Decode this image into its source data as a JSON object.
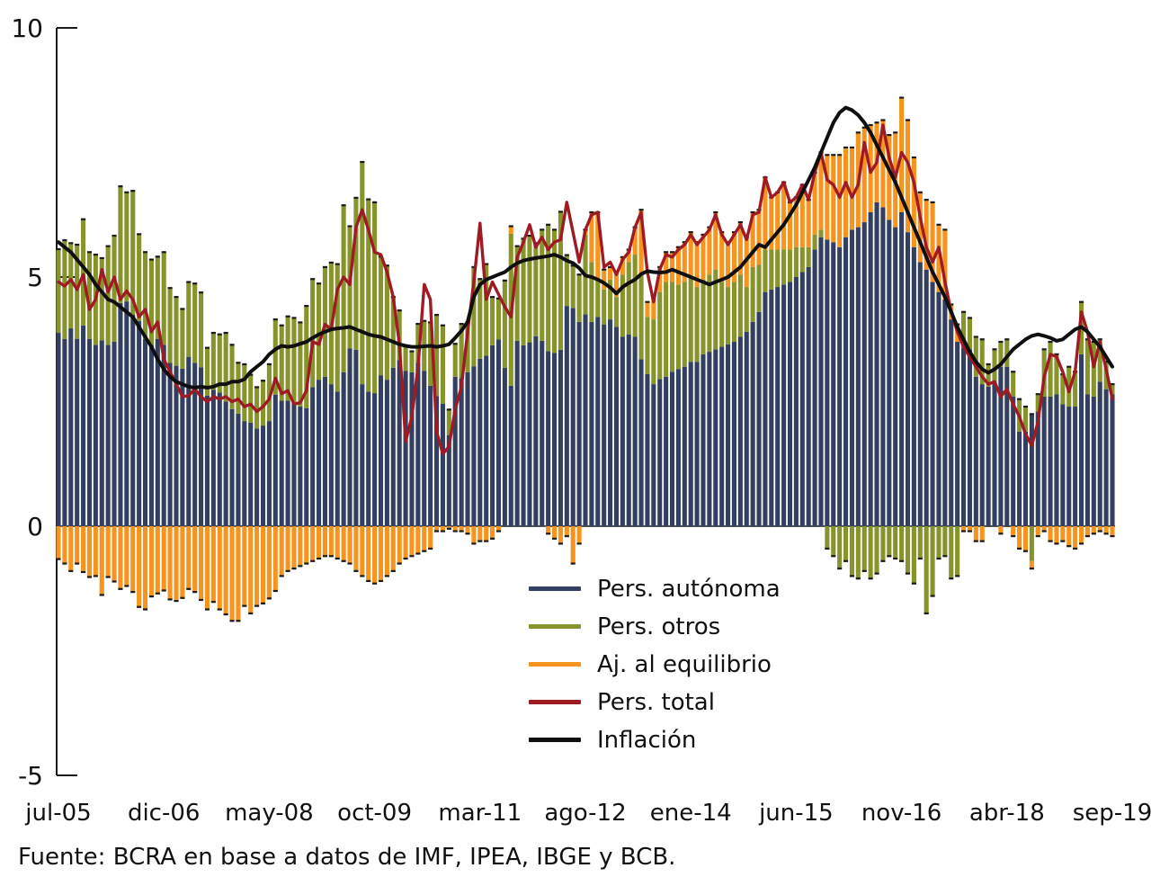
{
  "chart_data": {
    "type": "bar",
    "subtype": "stacked-bar-with-lines",
    "title": "",
    "ylim": [
      -5,
      10
    ],
    "yticks": [
      -5,
      0,
      5,
      10
    ],
    "ytick_labels": [
      "-5",
      "0",
      "5",
      "10"
    ],
    "x_unit": "month",
    "months_count": 171,
    "x_tick_indices": [
      0,
      17,
      34,
      51,
      68,
      85,
      102,
      119,
      136,
      153,
      170
    ],
    "x_tick_labels": [
      "jul-05",
      "dic-06",
      "may-08",
      "oct-09",
      "mar-11",
      "ago-12",
      "ene-14",
      "jun-15",
      "nov-16",
      "abr-18",
      "sep-19"
    ],
    "grid": false,
    "legend_position": "inside-bottom-center",
    "source_note": "Fuente: BCRA en base a datos de IMF, IPEA, IBGE y BCB.",
    "colors": {
      "autonoma": "#333f60",
      "otros": "#87942c",
      "ajuste": "#f7941e",
      "total": "#9f1b24",
      "inflacion": "#0f0f0f",
      "bar_cap": "#1b1b1b",
      "axis": "#1a1a1a"
    },
    "series": [
      {
        "name": "Pers. autónoma",
        "kind": "bar-stack",
        "color": "#333f60",
        "values": [
          3.88,
          3.76,
          3.97,
          3.76,
          4.03,
          3.76,
          3.64,
          3.73,
          3.64,
          3.7,
          4.48,
          4.51,
          4.24,
          4.12,
          3.76,
          3.64,
          3.76,
          3.64,
          3.28,
          3.22,
          3.16,
          3.4,
          3.28,
          3.19,
          2.62,
          2.74,
          2.68,
          2.5,
          2.35,
          2.26,
          2.11,
          2.08,
          1.96,
          2.02,
          2.11,
          2.64,
          2.52,
          2.52,
          2.46,
          2.4,
          2.37,
          2.79,
          2.94,
          3.0,
          2.85,
          2.7,
          3.09,
          3.57,
          3.54,
          2.85,
          2.7,
          2.67,
          3.03,
          2.94,
          3.18,
          3.33,
          3.12,
          3.09,
          3.28,
          3.12,
          2.82,
          2.61,
          2.46,
          1.83,
          3.0,
          2.97,
          3.09,
          3.21,
          3.36,
          3.42,
          3.63,
          3.75,
          3.18,
          2.82,
          3.72,
          3.63,
          3.69,
          3.81,
          3.72,
          3.51,
          3.48,
          3.54,
          4.42,
          4.38,
          4.1,
          4.25,
          4.1,
          4.2,
          4.05,
          4.15,
          4.0,
          3.8,
          3.85,
          3.8,
          3.35,
          3.05,
          2.85,
          2.95,
          3.0,
          3.1,
          3.15,
          3.2,
          3.3,
          3.3,
          3.45,
          3.5,
          3.55,
          3.6,
          3.65,
          3.7,
          3.8,
          3.9,
          4.1,
          4.3,
          4.7,
          4.75,
          4.8,
          4.85,
          4.9,
          5.0,
          5.1,
          5.2,
          5.55,
          5.8,
          5.75,
          5.7,
          5.6,
          5.8,
          5.95,
          6.0,
          6.1,
          6.3,
          6.5,
          6.4,
          6.15,
          6.0,
          6.3,
          5.9,
          5.6,
          5.3,
          5.15,
          4.9,
          4.7,
          4.55,
          4.15,
          3.7,
          3.58,
          3.55,
          3.0,
          2.85,
          2.8,
          2.9,
          3.2,
          3.2,
          2.6,
          1.9,
          1.9,
          2.25,
          2.3,
          2.6,
          2.6,
          2.65,
          2.45,
          2.4,
          2.4,
          3.45,
          2.65,
          2.6,
          2.9,
          2.75,
          2.65
        ]
      },
      {
        "name": "Pers. otros",
        "kind": "bar-stack",
        "color": "#87942c",
        "values": [
          1.68,
          1.98,
          1.71,
          1.89,
          2.13,
          1.74,
          1.81,
          1.65,
          1.98,
          2.13,
          2.34,
          2.19,
          2.49,
          1.74,
          1.74,
          1.71,
          1.65,
          1.86,
          1.5,
          1.38,
          1.2,
          1.5,
          1.59,
          1.5,
          0.96,
          1.14,
          1.17,
          1.38,
          1.29,
          1.02,
          1.14,
          0.96,
          0.83,
          0.9,
          1.14,
          1.51,
          1.51,
          1.69,
          1.72,
          1.69,
          2.05,
          2.17,
          1.93,
          2.2,
          2.44,
          2.56,
          3.35,
          2.45,
          3.05,
          4.46,
          3.86,
          3.83,
          2.38,
          2.29,
          1.42,
          1.0,
          0.5,
          0.42,
          0.78,
          1.0,
          1.27,
          1.63,
          1.57,
          0.51,
          0.66,
          1.09,
          1.0,
          1.99,
          1.6,
          1.84,
          0.97,
          0.82,
          1.75,
          3.05,
          1.9,
          2.14,
          2.14,
          1.87,
          2.23,
          2.54,
          2.47,
          2.77,
          1.02,
          0.85,
          0.95,
          1.6,
          1.2,
          0.75,
          0.7,
          0.8,
          0.6,
          1.25,
          1.45,
          1.65,
          1.7,
          1.15,
          1.3,
          1.75,
          1.9,
          1.8,
          1.7,
          1.7,
          1.7,
          1.5,
          1.5,
          1.55,
          1.6,
          1.3,
          1.15,
          1.2,
          1.25,
          0.9,
          1.1,
          0.95,
          0.85,
          0.8,
          0.75,
          0.7,
          0.65,
          0.6,
          0.5,
          0.4,
          0.3,
          0.15,
          -0.45,
          -0.6,
          -0.85,
          -0.7,
          -1.0,
          -1.05,
          -0.9,
          -1.05,
          -0.95,
          -0.7,
          -0.6,
          -0.65,
          -0.7,
          -0.95,
          -1.15,
          -0.65,
          -1.75,
          -1.4,
          -0.65,
          -0.6,
          -1.05,
          -1.0,
          0.72,
          0.63,
          0.8,
          0.9,
          0.45,
          0.65,
          0.5,
          0.55,
          0.5,
          0.65,
          0.5,
          -0.7,
          0.35,
          0.95,
          1.1,
          0.8,
          0.6,
          0.8,
          0.7,
          1.05,
          1.1,
          1.1,
          0.85,
          0.55,
          0.2
        ]
      },
      {
        "name": "Aj. al equilibrio",
        "kind": "bar-stack",
        "color": "#f7941e",
        "values": [
          -0.66,
          -0.75,
          -0.9,
          -0.75,
          -0.92,
          -1.02,
          -1.0,
          -1.38,
          -1.02,
          -1.11,
          -1.26,
          -1.2,
          -1.32,
          -1.62,
          -1.67,
          -1.41,
          -1.35,
          -1.29,
          -1.47,
          -1.5,
          -1.44,
          -1.26,
          -1.32,
          -1.48,
          -1.67,
          -1.52,
          -1.67,
          -1.77,
          -1.9,
          -1.9,
          -1.6,
          -1.75,
          -1.6,
          -1.55,
          -1.45,
          -1.3,
          -1.0,
          -0.9,
          -0.85,
          -0.8,
          -0.75,
          -0.7,
          -0.65,
          -0.6,
          -0.6,
          -0.65,
          -0.7,
          -0.75,
          -0.9,
          -1.0,
          -1.1,
          -1.15,
          -1.1,
          -1.0,
          -0.9,
          -0.75,
          -0.65,
          -0.6,
          -0.55,
          -0.5,
          -0.45,
          -0.1,
          -0.1,
          -0.05,
          -0.1,
          -0.1,
          -0.15,
          -0.35,
          -0.3,
          -0.3,
          -0.25,
          -0.1,
          0.0,
          0.15,
          0.0,
          0.0,
          0.0,
          0.0,
          0.0,
          -0.15,
          -0.25,
          -0.35,
          -0.2,
          -0.75,
          -0.35,
          0.1,
          1.0,
          1.35,
          0.4,
          0.25,
          0.5,
          0.35,
          0.25,
          0.55,
          1.3,
          0.3,
          0.45,
          0.5,
          0.6,
          0.6,
          0.75,
          0.8,
          0.9,
          0.9,
          0.9,
          0.95,
          1.15,
          1.0,
          0.9,
          1.0,
          1.05,
          1.0,
          1.1,
          1.1,
          1.45,
          1.05,
          1.15,
          1.35,
          0.95,
          1.0,
          1.25,
          0.95,
          1.25,
          1.55,
          1.7,
          1.75,
          1.85,
          1.8,
          1.65,
          1.9,
          1.9,
          1.75,
          1.6,
          1.75,
          1.7,
          1.9,
          2.3,
          2.25,
          1.8,
          1.4,
          1.4,
          1.6,
          1.35,
          1.4,
          0.3,
          0.35,
          -0.1,
          -0.1,
          -0.3,
          -0.3,
          0.0,
          0.0,
          -0.15,
          0.0,
          -0.2,
          -0.45,
          -0.5,
          -0.15,
          -0.2,
          -0.1,
          -0.3,
          -0.35,
          -0.3,
          -0.4,
          -0.45,
          -0.35,
          -0.2,
          -0.15,
          -0.1,
          -0.15,
          -0.2
        ]
      },
      {
        "name": "Pers. total",
        "kind": "line",
        "color": "#9f1b24",
        "values": [
          4.9,
          4.82,
          4.95,
          4.75,
          5.05,
          4.35,
          4.55,
          5.15,
          4.7,
          5.0,
          4.55,
          4.72,
          4.55,
          4.2,
          4.35,
          3.9,
          4.1,
          3.35,
          3.1,
          2.85,
          2.6,
          2.62,
          2.75,
          2.6,
          2.5,
          2.6,
          2.55,
          2.6,
          2.5,
          2.55,
          2.4,
          2.45,
          2.3,
          2.4,
          2.55,
          2.97,
          2.66,
          2.72,
          2.45,
          2.48,
          2.72,
          3.7,
          3.65,
          4.05,
          3.95,
          4.75,
          5.0,
          4.85,
          6.0,
          6.35,
          5.95,
          5.5,
          5.45,
          5.1,
          4.6,
          3.65,
          1.7,
          2.2,
          3.2,
          4.85,
          4.55,
          1.9,
          1.45,
          1.6,
          2.35,
          2.8,
          3.9,
          4.9,
          6.08,
          4.55,
          4.9,
          4.65,
          4.4,
          4.2,
          5.4,
          5.7,
          6.05,
          5.6,
          5.8,
          5.55,
          5.7,
          5.75,
          6.5,
          5.9,
          5.3,
          5.95,
          6.25,
          6.3,
          5.2,
          5.3,
          5.05,
          5.35,
          5.5,
          6.0,
          6.3,
          5.1,
          4.5,
          5.15,
          5.45,
          5.4,
          5.55,
          5.65,
          5.85,
          5.65,
          5.8,
          5.95,
          6.25,
          5.85,
          5.65,
          5.85,
          6.05,
          5.75,
          6.25,
          6.3,
          7.0,
          6.6,
          6.7,
          6.9,
          6.5,
          6.6,
          6.85,
          6.55,
          7.1,
          7.5,
          6.95,
          6.85,
          6.6,
          6.9,
          6.6,
          6.85,
          7.7,
          7.1,
          7.3,
          8.05,
          7.4,
          7.0,
          7.5,
          7.3,
          6.9,
          6.2,
          5.6,
          5.3,
          5.6,
          4.9,
          4.3,
          3.9,
          3.6,
          3.4,
          3.2,
          3.0,
          2.85,
          2.9,
          2.6,
          2.75,
          2.45,
          2.2,
          1.85,
          1.62,
          2.1,
          3.0,
          3.45,
          3.4,
          3.1,
          2.7,
          3.1,
          4.3,
          3.9,
          3.2,
          3.7,
          3.15,
          2.55
        ]
      },
      {
        "name": "Inflación",
        "kind": "line",
        "color": "#0f0f0f",
        "values": [
          5.7,
          5.6,
          5.5,
          5.35,
          5.2,
          5.05,
          4.85,
          4.7,
          4.55,
          4.5,
          4.4,
          4.3,
          4.2,
          4.0,
          3.8,
          3.6,
          3.35,
          3.15,
          3.0,
          2.9,
          2.85,
          2.8,
          2.78,
          2.8,
          2.78,
          2.8,
          2.85,
          2.85,
          2.9,
          2.9,
          2.95,
          3.1,
          3.2,
          3.3,
          3.45,
          3.55,
          3.62,
          3.6,
          3.62,
          3.66,
          3.7,
          3.78,
          3.85,
          3.9,
          3.95,
          3.97,
          3.98,
          4.0,
          3.95,
          3.9,
          3.85,
          3.82,
          3.8,
          3.75,
          3.7,
          3.65,
          3.62,
          3.6,
          3.6,
          3.61,
          3.62,
          3.6,
          3.62,
          3.65,
          3.78,
          3.92,
          4.1,
          4.6,
          4.85,
          4.95,
          5.0,
          5.05,
          5.1,
          5.2,
          5.28,
          5.33,
          5.36,
          5.38,
          5.4,
          5.42,
          5.45,
          5.4,
          5.33,
          5.28,
          5.18,
          5.03,
          5.0,
          4.95,
          4.88,
          4.79,
          4.67,
          4.8,
          4.88,
          4.95,
          5.06,
          5.12,
          5.1,
          5.09,
          5.1,
          5.15,
          5.1,
          5.05,
          5.0,
          4.95,
          4.9,
          4.85,
          4.9,
          4.95,
          5.0,
          5.1,
          5.2,
          5.35,
          5.5,
          5.65,
          5.6,
          5.75,
          5.9,
          6.05,
          6.25,
          6.45,
          6.7,
          6.95,
          7.2,
          7.5,
          7.8,
          8.1,
          8.3,
          8.4,
          8.35,
          8.25,
          8.1,
          7.9,
          7.65,
          7.4,
          7.15,
          6.9,
          6.6,
          6.3,
          6.0,
          5.7,
          5.4,
          5.1,
          4.85,
          4.6,
          4.3,
          4.0,
          3.75,
          3.5,
          3.3,
          3.15,
          3.08,
          3.15,
          3.25,
          3.4,
          3.55,
          3.65,
          3.75,
          3.82,
          3.85,
          3.82,
          3.78,
          3.72,
          3.75,
          3.85,
          3.95,
          4.0,
          3.9,
          3.75,
          3.6,
          3.4,
          3.2
        ]
      }
    ]
  }
}
